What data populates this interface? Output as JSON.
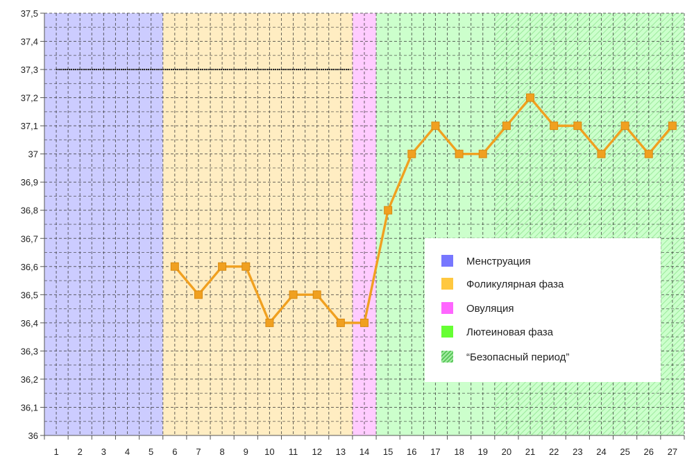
{
  "chart_data": {
    "type": "line",
    "x": [
      6,
      7,
      8,
      9,
      10,
      11,
      12,
      13,
      14,
      15,
      16,
      17,
      18,
      19,
      20,
      21,
      22,
      23,
      24,
      25,
      26,
      27
    ],
    "series": [
      {
        "values": [
          36.6,
          36.5,
          36.6,
          36.6,
          36.4,
          36.5,
          36.5,
          36.4,
          36.4,
          36.8,
          37.0,
          37.1,
          37.0,
          37.0,
          37.1,
          37.2,
          37.1,
          37.1,
          37.0,
          37.1,
          37.0,
          37.1
        ],
        "color": "#F0A020"
      }
    ],
    "xlim": [
      0.5,
      27.5
    ],
    "ylim": [
      36,
      37.5
    ],
    "x_ticks": [
      "1",
      "2",
      "3",
      "4",
      "5",
      "6",
      "7",
      "8",
      "9",
      "10",
      "11",
      "12",
      "13",
      "14",
      "15",
      "16",
      "17",
      "18",
      "19",
      "20",
      "21",
      "22",
      "23",
      "24",
      "25",
      "26",
      "27"
    ],
    "y_ticks": [
      "36",
      "36,1",
      "36,2",
      "36,3",
      "36,4",
      "36,5",
      "36,6",
      "36,7",
      "36,8",
      "36,9",
      "37",
      "37,1",
      "37,2",
      "37,3",
      "37,4",
      "37,5"
    ],
    "reference_line": {
      "y": 37.3,
      "x_from": 1,
      "x_to": 14
    },
    "phases": [
      {
        "name": "Менструация",
        "from": 1,
        "to": 5,
        "color": "#CCCCFF",
        "swatch": "#7777FF"
      },
      {
        "name": "Фоликулярная фаза",
        "from": 6,
        "to": 13,
        "color": "#FFEDC2",
        "swatch": "#FFC840"
      },
      {
        "name": "Овуляция",
        "from": 14,
        "to": 14,
        "color": "#FFCCFF",
        "swatch": "#FF66FF"
      },
      {
        "name": "Лютеиновая фаза",
        "from": 15,
        "to": 27,
        "color": "#CCFFCC",
        "swatch": "#66FF33"
      }
    ],
    "safe_period": {
      "name": "“Безопасный период”",
      "from": 20,
      "to": 27,
      "swatch": "#33CC33"
    },
    "grid": true,
    "legend_position": "bottom-right"
  }
}
